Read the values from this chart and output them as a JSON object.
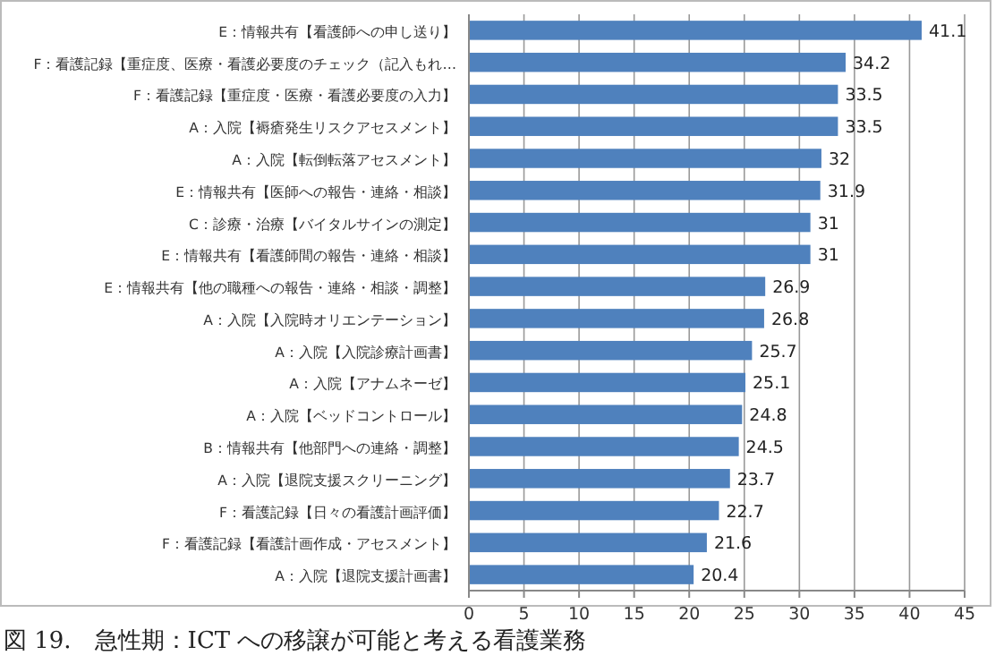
{
  "chart_data": {
    "type": "bar",
    "orientation": "horizontal",
    "annotations": [
      "図 19.　急性期：ICT への移譲が可能と考える看護業務"
    ],
    "categories": [
      "E：情報共有【看護師への申し送り】",
      "F：看護記録【重症度、医療・看護必要度のチェック（記入もれ…",
      "F：看護記録【重症度・医療・看護必要度の入力】",
      "A：入院【褥瘡発生リスクアセスメント】",
      "A：入院【転倒転落アセスメント】",
      "E：情報共有【医師への報告・連絡・相談】",
      "C：診療・治療【バイタルサインの測定】",
      "E：情報共有【看護師間の報告・連絡・相談】",
      "E：情報共有【他の職種への報告・連絡・相談・調整】",
      "A：入院【入院時オリエンテーション】",
      "A：入院【入院診療計画書】",
      "A：入院【アナムネーゼ】",
      "A：入院【ベッドコントロール】",
      "B：情報共有【他部門への連絡・調整】",
      "A：入院【退院支援スクリーニング】",
      "F：看護記録【日々の看護計画評価】",
      "F：看護記録【看護計画作成・アセスメント】",
      "A：入院【退院支援計画書】"
    ],
    "values": [
      41.1,
      34.2,
      33.5,
      33.5,
      32,
      31.9,
      31,
      31,
      26.9,
      26.8,
      25.7,
      25.1,
      24.8,
      24.5,
      23.7,
      22.7,
      21.6,
      20.4
    ],
    "color": "#4f81bd",
    "data_labels": true,
    "xlim": [
      0,
      45
    ],
    "xticks": [
      0,
      5,
      10,
      15,
      20,
      25,
      30,
      35,
      40,
      45
    ],
    "grid": "x"
  }
}
